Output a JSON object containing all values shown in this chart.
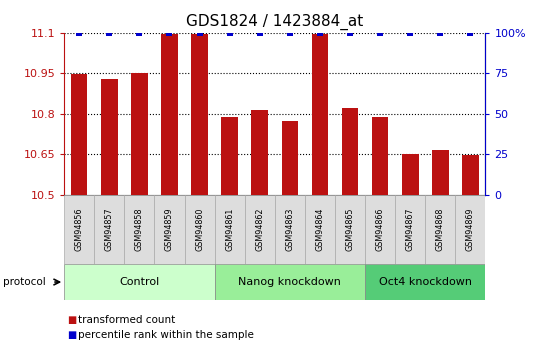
{
  "title": "GDS1824 / 1423884_at",
  "samples": [
    "GSM94856",
    "GSM94857",
    "GSM94858",
    "GSM94859",
    "GSM94860",
    "GSM94861",
    "GSM94862",
    "GSM94863",
    "GSM94864",
    "GSM94865",
    "GSM94866",
    "GSM94867",
    "GSM94868",
    "GSM94869"
  ],
  "bar_values": [
    10.947,
    10.928,
    10.953,
    11.097,
    11.097,
    10.787,
    10.813,
    10.773,
    11.097,
    10.822,
    10.79,
    10.653,
    10.668,
    10.648
  ],
  "percentile_values": [
    100,
    100,
    100,
    100,
    100,
    100,
    100,
    100,
    100,
    100,
    100,
    100,
    100,
    100
  ],
  "bar_color": "#bb1111",
  "percentile_color": "#0000cc",
  "ylim_left": [
    10.5,
    11.1
  ],
  "ylim_right": [
    0,
    100
  ],
  "yticks_left": [
    10.5,
    10.65,
    10.8,
    10.95,
    11.1
  ],
  "ytick_labels_left": [
    "10.5",
    "10.65",
    "10.8",
    "10.95",
    "11.1"
  ],
  "yticks_right": [
    0,
    25,
    50,
    75,
    100
  ],
  "ytick_labels_right": [
    "0",
    "25",
    "50",
    "75",
    "100%"
  ],
  "grid_values": [
    10.65,
    10.8,
    10.95,
    11.1
  ],
  "groups": [
    {
      "label": "Control",
      "start": 0,
      "end": 5,
      "color": "#ccffcc"
    },
    {
      "label": "Nanog knockdown",
      "start": 5,
      "end": 10,
      "color": "#99ee99"
    },
    {
      "label": "Oct4 knockdown",
      "start": 10,
      "end": 14,
      "color": "#55cc77"
    }
  ],
  "protocol_label": "protocol",
  "legend_items": [
    {
      "label": "transformed count",
      "color": "#bb1111"
    },
    {
      "label": "percentile rank within the sample",
      "color": "#0000cc"
    }
  ],
  "bar_width": 0.55,
  "background_color": "#ffffff",
  "sample_cell_color": "#dddddd",
  "sample_cell_edge": "#aaaaaa",
  "title_fontsize": 11,
  "axis_fontsize": 8,
  "sample_fontsize": 5.8,
  "group_fontsize": 8,
  "legend_fontsize": 7.5
}
